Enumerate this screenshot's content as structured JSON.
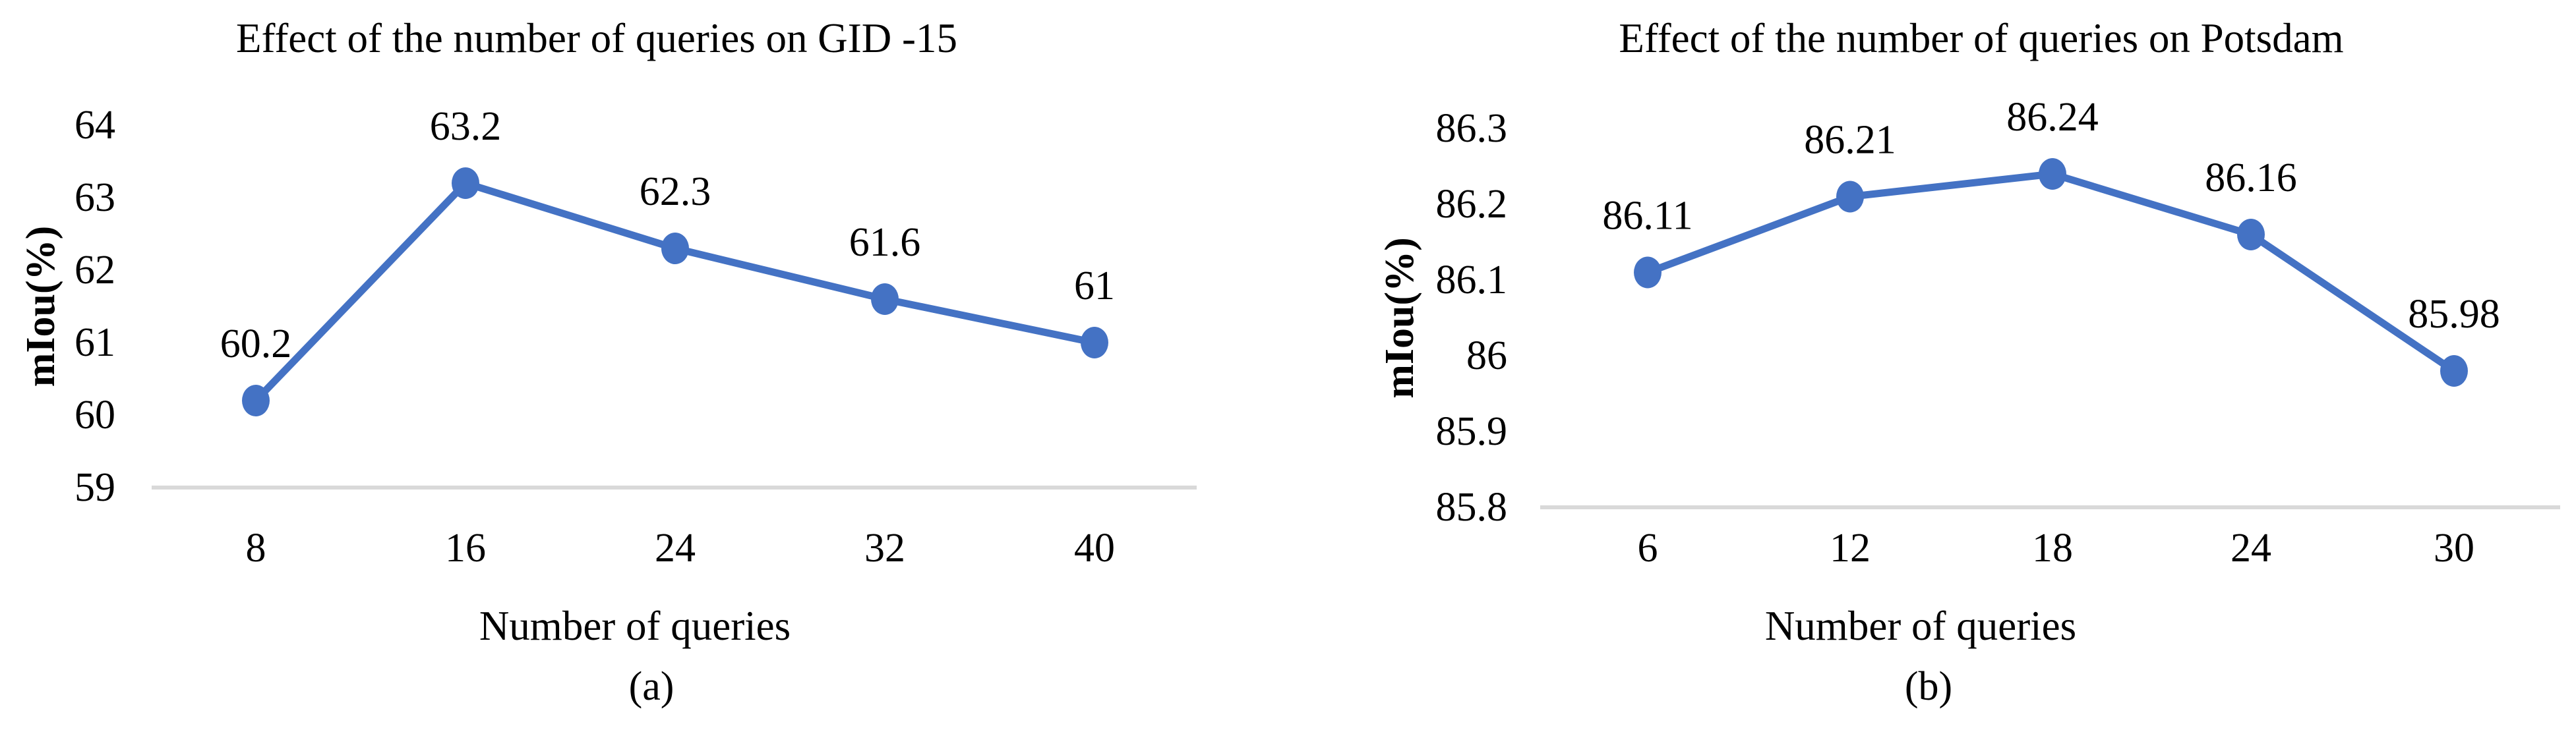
{
  "figure": {
    "background_color": "#ffffff",
    "text_color": "#000000",
    "accent_color": "#4472C4",
    "baseline_color": "#D9D9D9"
  },
  "chart_data": [
    {
      "type": "line",
      "title": "Effect of the number of queries on GID -15",
      "xlabel": "Number of queries",
      "ylabel": "mIou(%)",
      "caption": "(a)",
      "categories": [
        "8",
        "16",
        "24",
        "32",
        "40"
      ],
      "values": [
        60.2,
        63.2,
        62.3,
        61.6,
        61
      ],
      "point_labels": [
        "60.2",
        "63.2",
        "62.3",
        "61.6",
        "61"
      ],
      "ylim": [
        59,
        64
      ],
      "ytick_labels": [
        "59",
        "60",
        "61",
        "62",
        "63",
        "64"
      ],
      "grid": "baseline-only",
      "legend": "none",
      "line_color": "#4472C4",
      "marker": "circle",
      "baseline_color": "#D9D9D9"
    },
    {
      "type": "line",
      "title": "Effect of the number of queries on Potsdam",
      "xlabel": "Number of queries",
      "ylabel": "mIou(%)",
      "caption": "(b)",
      "categories": [
        "6",
        "12",
        "18",
        "24",
        "30"
      ],
      "values": [
        86.11,
        86.21,
        86.24,
        86.16,
        85.98
      ],
      "point_labels": [
        "86.11",
        "86.21",
        "86.24",
        "86.16",
        "85.98"
      ],
      "ylim": [
        85.8,
        86.3
      ],
      "ytick_labels": [
        "85.8",
        "85.9",
        "86",
        "86.1",
        "86.2",
        "86.3"
      ],
      "grid": "baseline-only",
      "legend": "none",
      "line_color": "#4472C4",
      "marker": "circle",
      "baseline_color": "#D9D9D9"
    }
  ]
}
